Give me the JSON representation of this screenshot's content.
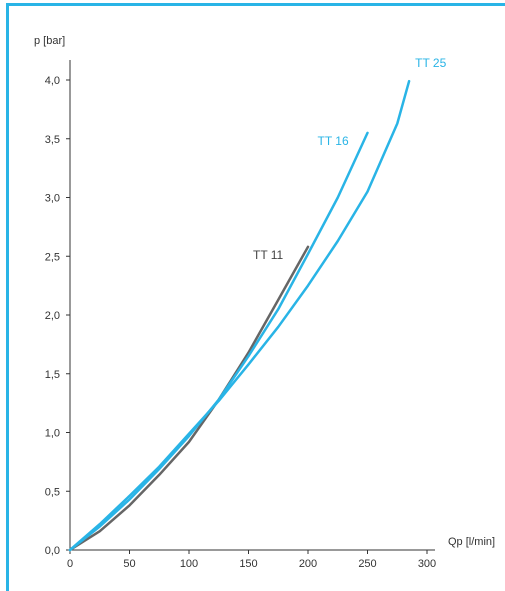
{
  "chart_data": {
    "type": "line",
    "xlabel": "Qp [l/min]",
    "ylabel": "p [bar]",
    "xlim": [
      0,
      300
    ],
    "ylim": [
      0,
      4.0
    ],
    "x_ticks": [
      "0",
      "50",
      "100",
      "150",
      "200",
      "250",
      "300"
    ],
    "y_ticks": [
      "0,0",
      "0,5",
      "1,0",
      "1,5",
      "2,0",
      "2,5",
      "3,0",
      "3,5",
      "4,0"
    ],
    "grid": false,
    "series": [
      {
        "name": "TT 11",
        "color": "#666666",
        "x": [
          0,
          25,
          50,
          75,
          100,
          125,
          150,
          175,
          200
        ],
        "y": [
          0,
          0.16,
          0.38,
          0.64,
          0.92,
          1.28,
          1.68,
          2.13,
          2.58
        ]
      },
      {
        "name": "TT 16",
        "color": "#29b4e6",
        "x": [
          0,
          25,
          50,
          75,
          100,
          125,
          150,
          175,
          200,
          225,
          250
        ],
        "y": [
          0,
          0.2,
          0.43,
          0.69,
          0.97,
          1.28,
          1.65,
          2.05,
          2.52,
          3.0,
          3.55
        ]
      },
      {
        "name": "TT 25",
        "color": "#29b4e6",
        "x": [
          0,
          25,
          50,
          75,
          100,
          125,
          150,
          175,
          200,
          225,
          250,
          275,
          285
        ],
        "y": [
          0,
          0.22,
          0.46,
          0.71,
          0.99,
          1.27,
          1.58,
          1.9,
          2.25,
          2.63,
          3.05,
          3.63,
          3.99
        ]
      }
    ]
  }
}
